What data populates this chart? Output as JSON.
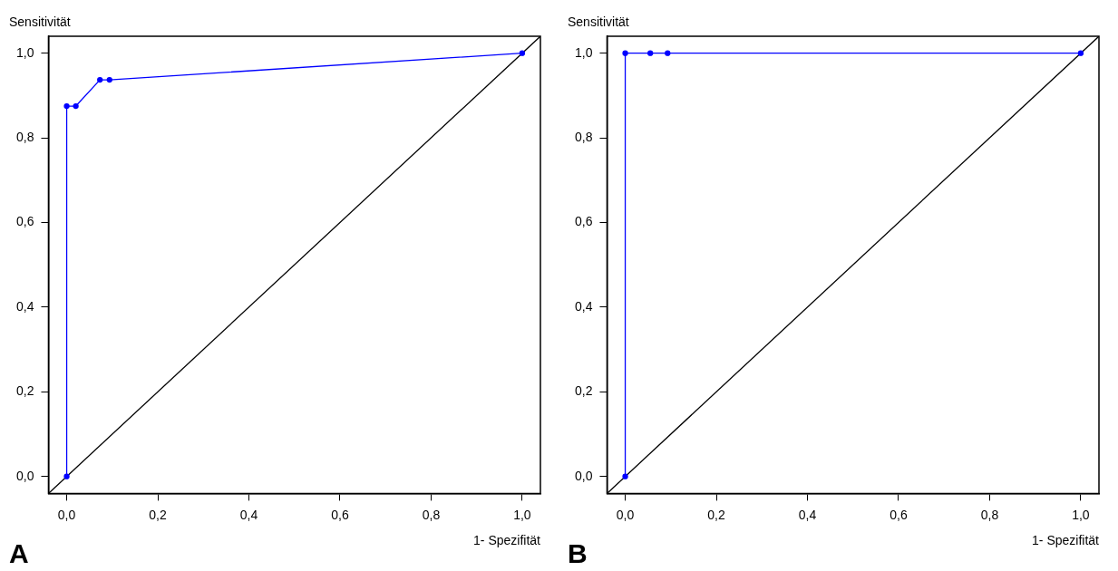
{
  "chart_data": [
    {
      "type": "line",
      "xlabel": "1- Spezifität",
      "ylabel": "Sensitivität",
      "annotations": [
        "A"
      ],
      "xlim": [
        -0.04,
        1.04
      ],
      "ylim": [
        -0.04,
        1.04
      ],
      "xticks": [
        {
          "value": 0,
          "label": "0,0"
        },
        {
          "value": 0.2,
          "label": "0,2"
        },
        {
          "value": 0.4,
          "label": "0,4"
        },
        {
          "value": 0.6,
          "label": "0,6"
        },
        {
          "value": 0.8,
          "label": "0,8"
        },
        {
          "value": 1,
          "label": "1,0"
        }
      ],
      "yticks": [
        {
          "value": 0,
          "label": "0,0"
        },
        {
          "value": 0.2,
          "label": "0,2"
        },
        {
          "value": 0.4,
          "label": "0,4"
        },
        {
          "value": 0.6,
          "label": "0,6"
        },
        {
          "value": 0.8,
          "label": "0,8"
        },
        {
          "value": 1,
          "label": "1,0"
        }
      ],
      "series": [
        {
          "color": "#0000ff",
          "marker": "circle",
          "x": [
            0,
            0,
            0.02,
            0.073,
            0.094,
            1
          ],
          "values": [
            0,
            0.875,
            0.875,
            0.937,
            0.937,
            1
          ]
        },
        {
          "color": "#000000",
          "marker": "none",
          "x": [
            -0.04,
            1.04
          ],
          "values": [
            -0.04,
            1.04
          ]
        }
      ]
    },
    {
      "type": "line",
      "xlabel": "1- Spezifität",
      "ylabel": "Sensitivität",
      "annotations": [
        "B"
      ],
      "xlim": [
        -0.04,
        1.04
      ],
      "ylim": [
        -0.04,
        1.04
      ],
      "xticks": [
        {
          "value": 0,
          "label": "0,0"
        },
        {
          "value": 0.2,
          "label": "0,2"
        },
        {
          "value": 0.4,
          "label": "0,4"
        },
        {
          "value": 0.6,
          "label": "0,6"
        },
        {
          "value": 0.8,
          "label": "0,8"
        },
        {
          "value": 1,
          "label": "1,0"
        }
      ],
      "yticks": [
        {
          "value": 0,
          "label": "0,0"
        },
        {
          "value": 0.2,
          "label": "0,2"
        },
        {
          "value": 0.4,
          "label": "0,4"
        },
        {
          "value": 0.6,
          "label": "0,6"
        },
        {
          "value": 0.8,
          "label": "0,8"
        },
        {
          "value": 1,
          "label": "1,0"
        }
      ],
      "series": [
        {
          "color": "#0000ff",
          "marker": "circle",
          "x": [
            0,
            0,
            0.055,
            0.093,
            1
          ],
          "values": [
            0,
            1,
            1,
            1,
            1
          ]
        },
        {
          "color": "#000000",
          "marker": "none",
          "x": [
            -0.04,
            1.04
          ],
          "values": [
            -0.04,
            1.04
          ]
        }
      ]
    }
  ]
}
